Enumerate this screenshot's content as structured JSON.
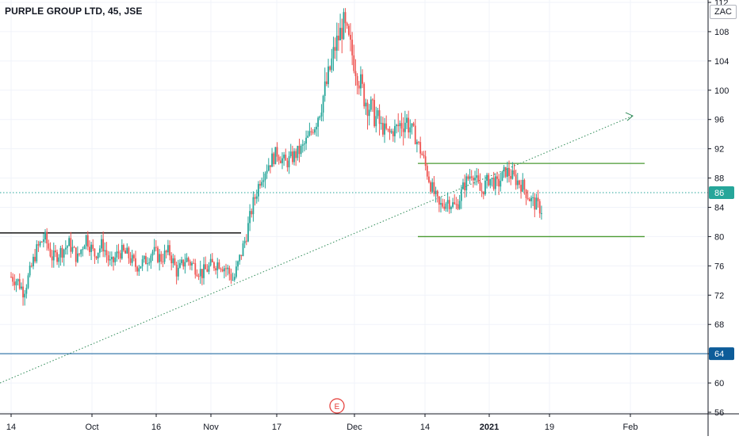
{
  "header": {
    "title": "PURPLE GROUP LTD, 45, JSE",
    "currency": "ZAC"
  },
  "chart_data": {
    "type": "candlestick",
    "symbol": "PURPLE GROUP LTD",
    "interval": "45",
    "exchange": "JSE",
    "currency": "ZAC",
    "y_axis": {
      "ticks": [
        56,
        60,
        64,
        68,
        72,
        76,
        80,
        84,
        88,
        92,
        96,
        100,
        104,
        108,
        112
      ],
      "range": [
        55,
        112
      ]
    },
    "x_axis": {
      "labels": [
        {
          "label": "14",
          "bold": false
        },
        {
          "label": "Oct",
          "bold": false
        },
        {
          "label": "16",
          "bold": false
        },
        {
          "label": "Nov",
          "bold": false
        },
        {
          "label": "17",
          "bold": false
        },
        {
          "label": "Dec",
          "bold": false
        },
        {
          "label": "14",
          "bold": false
        },
        {
          "label": "2021",
          "bold": true
        },
        {
          "label": "19",
          "bold": false
        },
        {
          "label": "Feb",
          "bold": false
        }
      ]
    },
    "price_tags": [
      {
        "value": 86,
        "label": "86",
        "color": "#26a69a",
        "style": "dotted"
      },
      {
        "value": 64,
        "label": "64",
        "color": "#0d5c99",
        "style": "solid"
      }
    ],
    "drawings": [
      {
        "kind": "horizontal_segment",
        "y": 80.5,
        "from": "14",
        "to": "Nov",
        "color": "#000000"
      },
      {
        "kind": "horizontal_segment",
        "y": 90,
        "from": "Dec",
        "to": "Feb",
        "color": "#4a9a32"
      },
      {
        "kind": "horizontal_segment",
        "y": 80,
        "from": "Dec",
        "to": "Feb",
        "color": "#4a9a32"
      },
      {
        "kind": "trend_arrow",
        "from_y": 60,
        "to_y": 96.5,
        "color": "#2e8b57",
        "style": "dotted"
      }
    ],
    "event_marker": {
      "label": "E",
      "near": "Dec"
    },
    "close_path": [
      [
        0,
        74.5
      ],
      [
        0.03,
        74
      ],
      [
        0.06,
        72.5
      ],
      [
        0.09,
        75
      ],
      [
        0.12,
        78
      ],
      [
        0.16,
        80
      ],
      [
        0.2,
        77
      ],
      [
        0.24,
        78
      ],
      [
        0.28,
        79
      ],
      [
        0.32,
        77
      ],
      [
        0.36,
        80
      ],
      [
        0.4,
        77.5
      ],
      [
        0.44,
        79
      ],
      [
        0.48,
        76
      ],
      [
        0.52,
        78
      ],
      [
        0.56,
        77.5
      ],
      [
        0.6,
        76
      ],
      [
        0.64,
        76.5
      ],
      [
        0.68,
        78
      ],
      [
        0.72,
        77
      ],
      [
        0.76,
        78
      ],
      [
        0.8,
        75
      ],
      [
        0.84,
        77
      ],
      [
        0.88,
        76
      ],
      [
        0.92,
        75
      ],
      [
        0.96,
        76
      ],
      [
        1.0,
        76.5
      ],
      [
        1.04,
        75.5
      ],
      [
        1.07,
        74
      ],
      [
        1.1,
        77
      ],
      [
        1.13,
        80
      ],
      [
        1.16,
        84
      ],
      [
        1.2,
        88
      ],
      [
        1.24,
        90
      ],
      [
        1.28,
        91.5
      ],
      [
        1.32,
        90
      ],
      [
        1.36,
        91
      ],
      [
        1.4,
        92
      ],
      [
        1.44,
        94
      ],
      [
        1.48,
        97
      ],
      [
        1.52,
        101
      ],
      [
        1.56,
        106
      ],
      [
        1.6,
        109
      ],
      [
        1.63,
        106
      ],
      [
        1.66,
        103
      ],
      [
        1.7,
        99
      ],
      [
        1.74,
        97
      ],
      [
        1.78,
        95
      ],
      [
        1.82,
        94
      ],
      [
        1.86,
        95
      ],
      [
        1.9,
        96
      ],
      [
        1.94,
        94
      ],
      [
        1.98,
        91
      ],
      [
        2.02,
        87
      ],
      [
        2.06,
        84
      ],
      [
        2.1,
        85
      ],
      [
        2.14,
        84
      ],
      [
        2.18,
        87
      ],
      [
        2.22,
        89
      ],
      [
        2.26,
        86
      ],
      [
        2.3,
        88
      ],
      [
        2.34,
        87
      ],
      [
        2.38,
        89
      ],
      [
        2.42,
        88
      ],
      [
        2.46,
        87
      ],
      [
        2.5,
        85
      ],
      [
        2.54,
        84
      ],
      [
        2.58,
        83
      ],
      [
        2.62,
        86
      ],
      [
        2.66,
        87
      ],
      [
        2.7,
        86
      ]
    ]
  }
}
